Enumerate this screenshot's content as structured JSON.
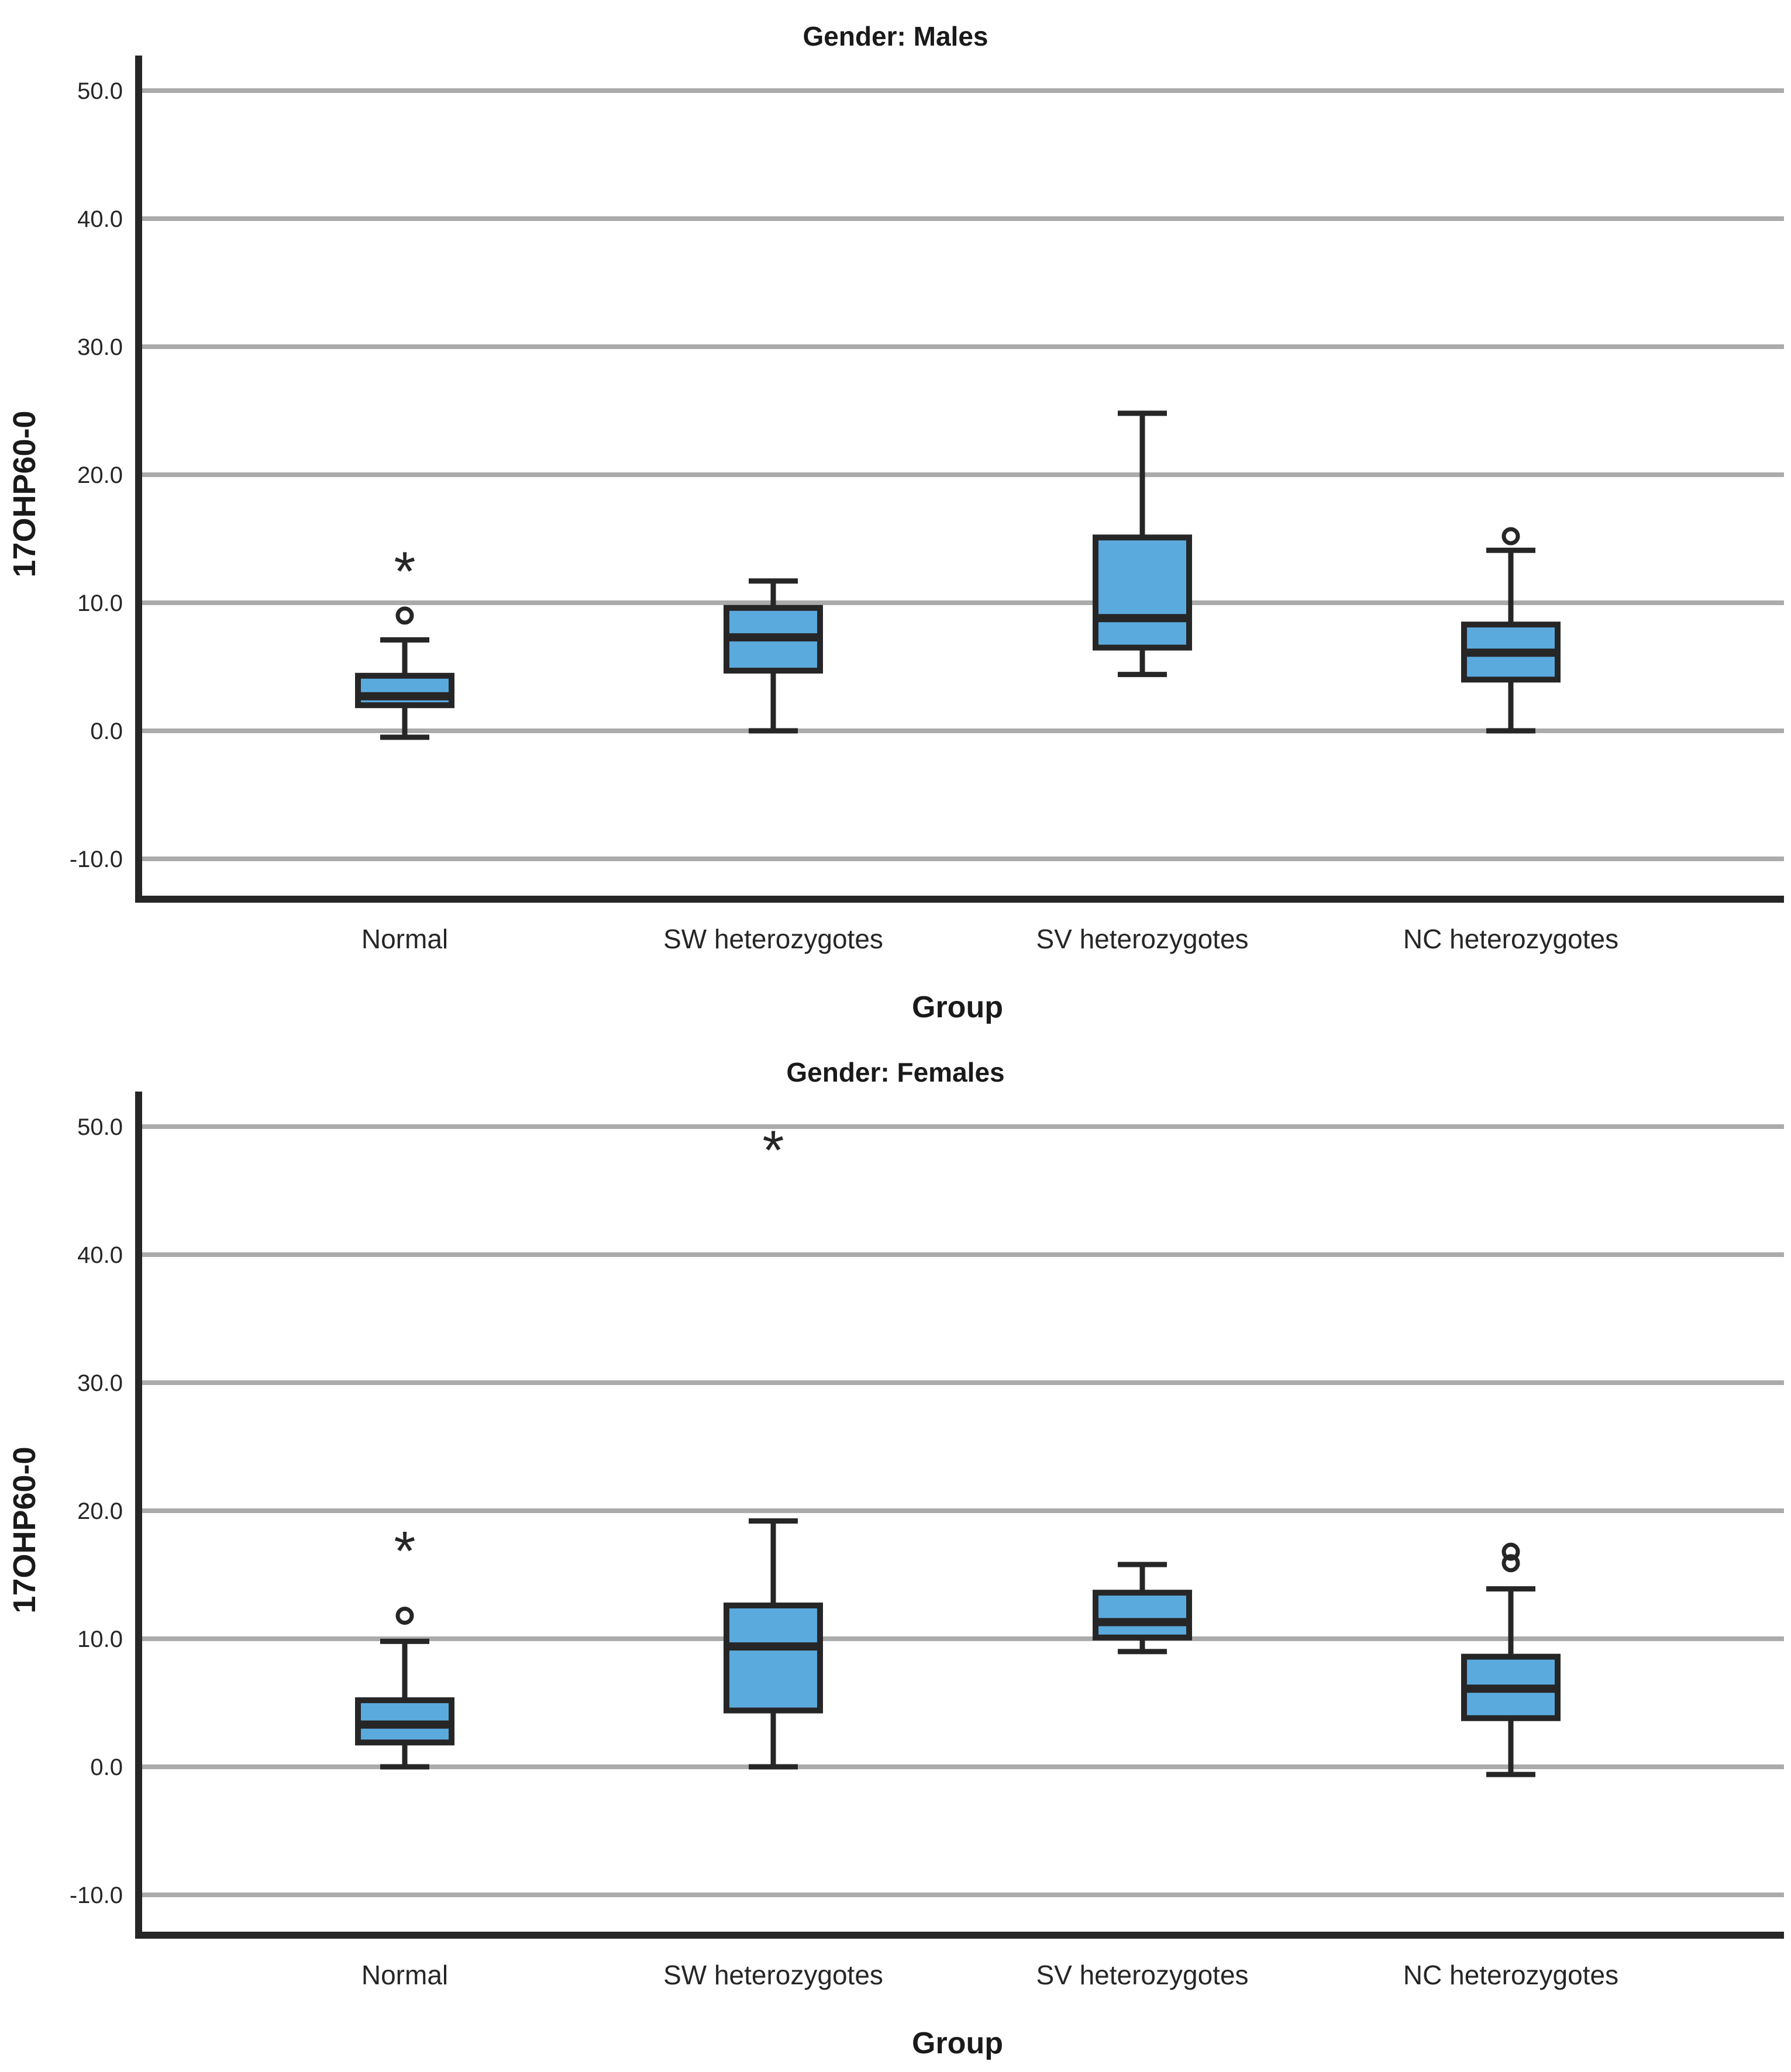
{
  "figure": {
    "background": "#FFFFFF"
  },
  "style": {
    "box_fill": "#5BAADE",
    "line_color": "#262626",
    "grid_color": "#ABABAB",
    "text_color": "#1A1A1A"
  },
  "chart_data": [
    {
      "type": "boxplot",
      "panel": "top",
      "title": "Gender: Males",
      "ylabel": "17OHP60-0",
      "xlabel": "Group",
      "grid": true,
      "legend": "none",
      "ylim": [
        -13.0,
        53.0
      ],
      "yticks": [
        50.0,
        40.0,
        30.0,
        20.0,
        10.0,
        0.0,
        -10.0
      ],
      "ytick_labels": [
        "50.0",
        "40.0",
        "30.0",
        "20.0",
        "10.0",
        "0.0",
        "-10.0"
      ],
      "categories": [
        "Normal",
        "SW heterozygotes",
        "SV heterozygotes",
        "NC heterozygotes"
      ],
      "series": [
        {
          "category": "Normal",
          "whisker_low": -0.5,
          "q1": 2.0,
          "median": 2.7,
          "q3": 4.3,
          "whisker_high": 7.1,
          "outliers": [
            {
              "marker": "circle",
              "value": 9.0
            },
            {
              "marker": "star",
              "value": 12.9
            }
          ]
        },
        {
          "category": "SW heterozygotes",
          "whisker_low": 0.0,
          "q1": 4.7,
          "median": 7.3,
          "q3": 9.6,
          "whisker_high": 11.7,
          "outliers": []
        },
        {
          "category": "SV heterozygotes",
          "whisker_low": 4.4,
          "q1": 6.5,
          "median": 8.8,
          "q3": 15.1,
          "whisker_high": 24.8,
          "outliers": []
        },
        {
          "category": "NC heterozygotes",
          "whisker_low": 0.0,
          "q1": 4.0,
          "median": 6.1,
          "q3": 8.3,
          "whisker_high": 14.1,
          "outliers": [
            {
              "marker": "circle",
              "value": 15.2
            }
          ]
        }
      ]
    },
    {
      "type": "boxplot",
      "panel": "bottom",
      "title": "Gender: Females",
      "ylabel": "17OHP60-0",
      "xlabel": "Group",
      "grid": true,
      "legend": "none",
      "ylim": [
        -13.0,
        53.0
      ],
      "yticks": [
        50.0,
        40.0,
        30.0,
        20.0,
        10.0,
        0.0,
        -10.0
      ],
      "ytick_labels": [
        "50.0",
        "40.0",
        "30.0",
        "20.0",
        "10.0",
        "0.0",
        "-10.0"
      ],
      "categories": [
        "Normal",
        "SW heterozygotes",
        "SV heterozygotes",
        "NC heterozygotes"
      ],
      "series": [
        {
          "category": "Normal",
          "whisker_low": 0.0,
          "q1": 1.9,
          "median": 3.3,
          "q3": 5.2,
          "whisker_high": 9.8,
          "outliers": [
            {
              "marker": "circle",
              "value": 11.8
            },
            {
              "marker": "star",
              "value": 17.3
            }
          ]
        },
        {
          "category": "SW heterozygotes",
          "whisker_low": 0.0,
          "q1": 4.4,
          "median": 9.4,
          "q3": 12.6,
          "whisker_high": 19.2,
          "outliers": [
            {
              "marker": "star",
              "value": 48.6
            }
          ]
        },
        {
          "category": "SV heterozygotes",
          "whisker_low": 9.0,
          "q1": 10.1,
          "median": 11.3,
          "q3": 13.6,
          "whisker_high": 15.8,
          "outliers": []
        },
        {
          "category": "NC heterozygotes",
          "whisker_low": -0.6,
          "q1": 3.8,
          "median": 6.1,
          "q3": 8.6,
          "whisker_high": 13.9,
          "outliers": [
            {
              "marker": "circle",
              "value": 15.9
            },
            {
              "marker": "circle",
              "value": 16.8
            }
          ]
        }
      ]
    }
  ]
}
